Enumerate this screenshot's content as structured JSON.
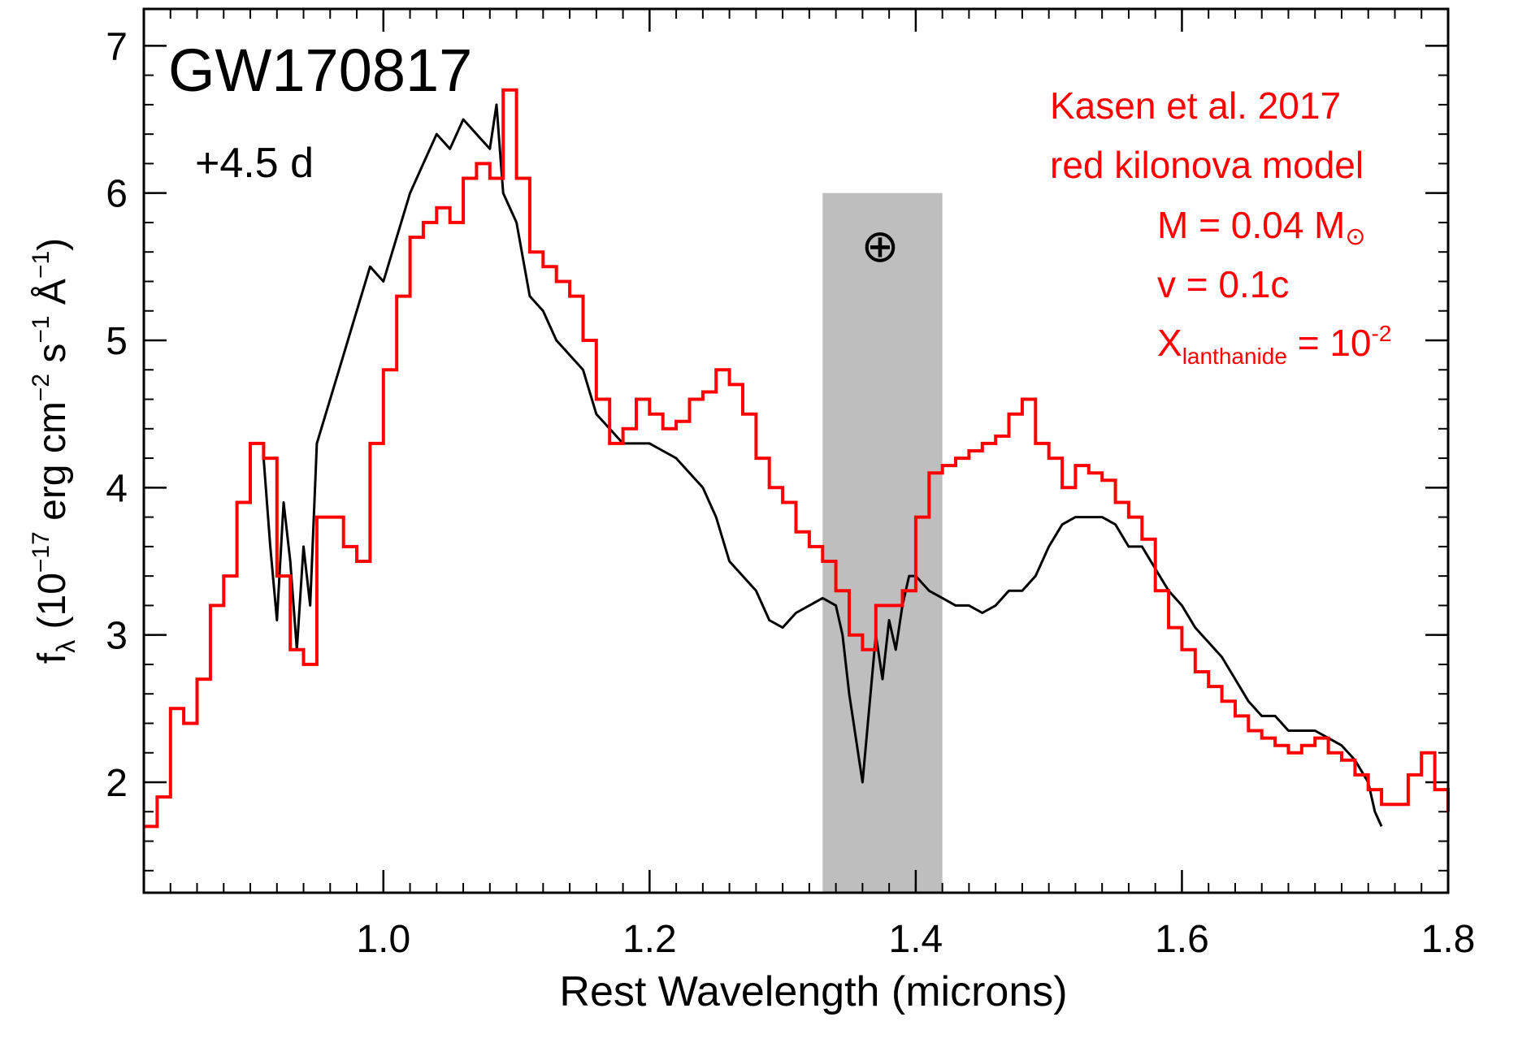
{
  "chart_data": {
    "type": "line",
    "title": "GW170817",
    "epoch": "+4.5 d",
    "xlabel": "Rest Wavelength (microns)",
    "ylabel": {
      "prefix": "f",
      "sub": "λ",
      "units_a": " (10",
      "exp1": "−17",
      "units_b": " erg cm",
      "exp2": "−2",
      "units_c": " s",
      "exp3": "−1",
      "units_d": " Å",
      "exp4": "−1",
      "units_e": ")"
    },
    "xlim": [
      0.82,
      1.8
    ],
    "ylim": [
      1.25,
      7.25
    ],
    "xticks": [
      1.0,
      1.2,
      1.4,
      1.6,
      1.8
    ],
    "xtick_labels": [
      "1.0",
      "1.2",
      "1.4",
      "1.6",
      "1.8"
    ],
    "yticks": [
      2,
      3,
      4,
      5,
      6,
      7
    ],
    "ytick_labels": [
      "2",
      "3",
      "4",
      "5",
      "6",
      "7"
    ],
    "telluric_band": {
      "x": [
        1.33,
        1.42
      ],
      "y": [
        1.25,
        6.0
      ],
      "symbol": "⊕"
    },
    "annotation": {
      "line1": "Kasen et al. 2017",
      "line2": "red kilonova model",
      "mass": "M = 0.04 M",
      "sun_symbol": "⊙",
      "velocity": "v  = 0.1c",
      "x_base": "X",
      "x_sub": "lanthanide",
      "x_eq": " = 10",
      "x_exp": "-2"
    },
    "colors": {
      "observed": "#000000",
      "model": "#ff0000",
      "band": "#bebebe",
      "axis": "#000000"
    },
    "series": [
      {
        "key": "observed",
        "x": [
          0.91,
          0.915,
          0.92,
          0.925,
          0.93,
          0.935,
          0.94,
          0.945,
          0.95,
          0.96,
          0.97,
          0.98,
          0.99,
          1.0,
          1.01,
          1.02,
          1.03,
          1.04,
          1.05,
          1.06,
          1.07,
          1.08,
          1.085,
          1.09,
          1.1,
          1.11,
          1.12,
          1.13,
          1.14,
          1.15,
          1.16,
          1.17,
          1.18,
          1.19,
          1.2,
          1.21,
          1.22,
          1.23,
          1.24,
          1.25,
          1.26,
          1.27,
          1.28,
          1.29,
          1.3,
          1.31,
          1.32,
          1.33,
          1.34,
          1.345,
          1.35,
          1.355,
          1.36,
          1.365,
          1.37,
          1.375,
          1.38,
          1.385,
          1.39,
          1.395,
          1.4,
          1.41,
          1.42,
          1.43,
          1.44,
          1.45,
          1.46,
          1.47,
          1.48,
          1.49,
          1.5,
          1.51,
          1.52,
          1.53,
          1.54,
          1.55,
          1.56,
          1.57,
          1.58,
          1.59,
          1.6,
          1.61,
          1.62,
          1.63,
          1.64,
          1.65,
          1.66,
          1.67,
          1.68,
          1.69,
          1.7,
          1.71,
          1.72,
          1.73,
          1.74,
          1.745,
          1.75
        ],
        "y": [
          4.2,
          3.6,
          3.1,
          3.9,
          3.5,
          2.9,
          3.6,
          3.2,
          4.3,
          4.6,
          4.9,
          5.2,
          5.5,
          5.4,
          5.7,
          6.0,
          6.2,
          6.4,
          6.3,
          6.5,
          6.4,
          6.3,
          6.6,
          6.0,
          5.8,
          5.3,
          5.2,
          5.0,
          4.9,
          4.8,
          4.5,
          4.4,
          4.3,
          4.3,
          4.3,
          4.25,
          4.2,
          4.1,
          4.0,
          3.8,
          3.5,
          3.4,
          3.3,
          3.1,
          3.05,
          3.15,
          3.2,
          3.25,
          3.2,
          3.0,
          2.6,
          2.3,
          2.0,
          2.5,
          3.0,
          2.7,
          3.1,
          2.9,
          3.2,
          3.4,
          3.4,
          3.3,
          3.25,
          3.2,
          3.2,
          3.15,
          3.2,
          3.3,
          3.3,
          3.4,
          3.6,
          3.75,
          3.8,
          3.8,
          3.8,
          3.75,
          3.6,
          3.6,
          3.45,
          3.3,
          3.2,
          3.05,
          2.95,
          2.85,
          2.7,
          2.55,
          2.45,
          2.45,
          2.35,
          2.35,
          2.35,
          2.3,
          2.25,
          2.15,
          2.0,
          1.8,
          1.7
        ]
      },
      {
        "key": "model",
        "x": [
          0.82,
          0.83,
          0.84,
          0.85,
          0.86,
          0.87,
          0.88,
          0.89,
          0.9,
          0.91,
          0.92,
          0.93,
          0.94,
          0.95,
          0.96,
          0.97,
          0.98,
          0.99,
          1.0,
          1.01,
          1.02,
          1.03,
          1.04,
          1.05,
          1.06,
          1.07,
          1.08,
          1.09,
          1.1,
          1.11,
          1.12,
          1.13,
          1.14,
          1.15,
          1.16,
          1.17,
          1.18,
          1.19,
          1.2,
          1.21,
          1.22,
          1.23,
          1.24,
          1.25,
          1.26,
          1.27,
          1.28,
          1.29,
          1.3,
          1.31,
          1.32,
          1.33,
          1.34,
          1.35,
          1.36,
          1.37,
          1.38,
          1.39,
          1.4,
          1.41,
          1.42,
          1.43,
          1.44,
          1.45,
          1.46,
          1.47,
          1.48,
          1.49,
          1.5,
          1.51,
          1.52,
          1.53,
          1.54,
          1.55,
          1.56,
          1.57,
          1.58,
          1.59,
          1.6,
          1.61,
          1.62,
          1.63,
          1.64,
          1.65,
          1.66,
          1.67,
          1.68,
          1.69,
          1.7,
          1.71,
          1.72,
          1.73,
          1.74,
          1.75,
          1.76,
          1.77,
          1.78,
          1.79,
          1.8
        ],
        "y": [
          1.7,
          1.9,
          2.5,
          2.4,
          2.7,
          3.2,
          3.4,
          3.9,
          4.3,
          4.2,
          3.4,
          2.9,
          2.8,
          3.8,
          3.8,
          3.6,
          3.5,
          4.3,
          4.8,
          5.3,
          5.7,
          5.8,
          5.9,
          5.8,
          6.1,
          6.2,
          6.1,
          6.7,
          6.1,
          5.6,
          5.5,
          5.4,
          5.3,
          5.0,
          4.6,
          4.3,
          4.4,
          4.6,
          4.5,
          4.4,
          4.45,
          4.6,
          4.65,
          4.8,
          4.7,
          4.5,
          4.2,
          4.0,
          3.9,
          3.7,
          3.6,
          3.5,
          3.3,
          3.0,
          2.9,
          3.2,
          3.2,
          3.3,
          3.8,
          4.1,
          4.15,
          4.2,
          4.25,
          4.3,
          4.35,
          4.5,
          4.6,
          4.3,
          4.2,
          4.0,
          4.15,
          4.1,
          4.05,
          3.9,
          3.8,
          3.65,
          3.3,
          3.05,
          2.9,
          2.75,
          2.65,
          2.55,
          2.45,
          2.35,
          2.3,
          2.25,
          2.2,
          2.25,
          2.3,
          2.2,
          2.15,
          2.05,
          1.95,
          1.85,
          1.85,
          2.05,
          2.2,
          1.95,
          1.8
        ]
      }
    ]
  }
}
